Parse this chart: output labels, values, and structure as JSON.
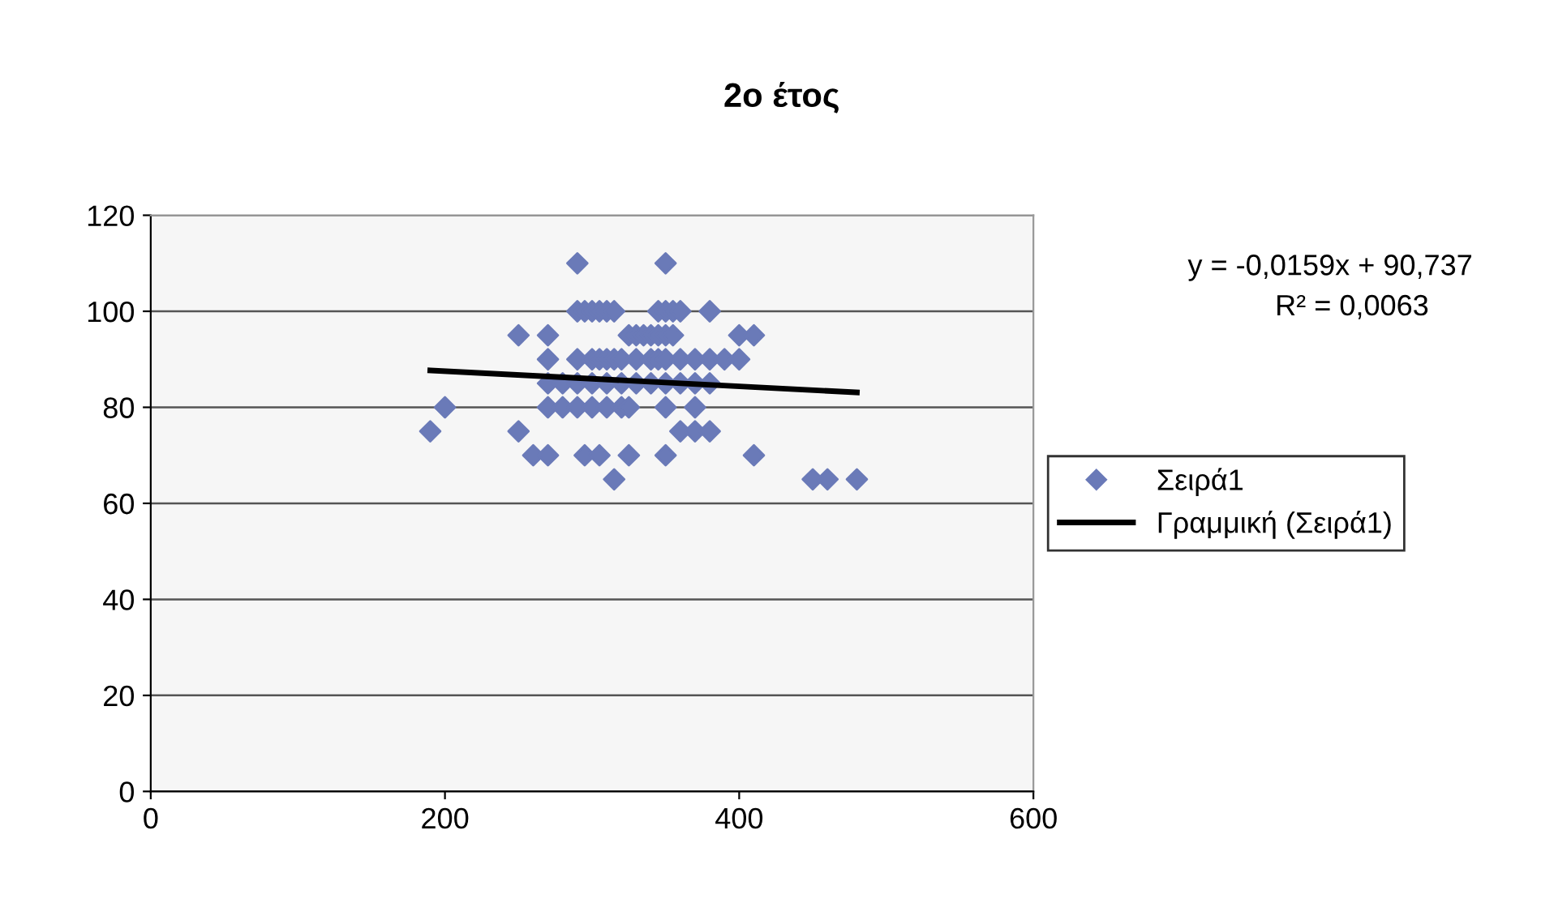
{
  "chart_data": {
    "type": "scatter",
    "title": "2ο έτος",
    "xlim": [
      0,
      600
    ],
    "xticks": [
      0,
      200,
      400,
      600
    ],
    "ylim": [
      0,
      120
    ],
    "yticks": [
      0,
      20,
      40,
      60,
      80,
      100,
      120
    ],
    "grid": "y",
    "legend": "right",
    "marker": "diamond",
    "annotations": [
      "y = -0,0159x + 90,737",
      "R² = 0,0063"
    ],
    "series": [
      {
        "name": "Σειρά1",
        "color": "#6a7ab8",
        "x": [
          290,
          350,
          290,
          295,
          300,
          305,
          310,
          315,
          345,
          350,
          355,
          360,
          380,
          250,
          270,
          325,
          330,
          335,
          340,
          345,
          350,
          355,
          400,
          410,
          270,
          290,
          300,
          305,
          310,
          315,
          320,
          330,
          340,
          345,
          350,
          360,
          370,
          380,
          390,
          400,
          270,
          280,
          290,
          300,
          310,
          320,
          330,
          340,
          350,
          360,
          370,
          380,
          200,
          270,
          280,
          290,
          300,
          310,
          320,
          325,
          350,
          370,
          190,
          250,
          360,
          370,
          380,
          260,
          270,
          295,
          305,
          325,
          350,
          410,
          315,
          450,
          460,
          480
        ],
        "values": [
          110,
          110,
          100,
          100,
          100,
          100,
          100,
          100,
          100,
          100,
          100,
          100,
          100,
          95,
          95,
          95,
          95,
          95,
          95,
          95,
          95,
          95,
          95,
          95,
          90,
          90,
          90,
          90,
          90,
          90,
          90,
          90,
          90,
          90,
          90,
          90,
          90,
          90,
          90,
          90,
          85,
          85,
          85,
          85,
          85,
          85,
          85,
          85,
          85,
          85,
          85,
          85,
          80,
          80,
          80,
          80,
          80,
          80,
          80,
          80,
          80,
          80,
          75,
          75,
          75,
          75,
          75,
          70,
          70,
          70,
          70,
          70,
          70,
          70,
          65,
          65,
          65,
          65
        ]
      },
      {
        "name": "Γραμμική (Σειρά1)",
        "type": "line",
        "color": "#000000",
        "line_style": "solid",
        "marker": "none",
        "x": [
          190,
          480
        ],
        "values": [
          87.7,
          83.1
        ]
      }
    ]
  }
}
